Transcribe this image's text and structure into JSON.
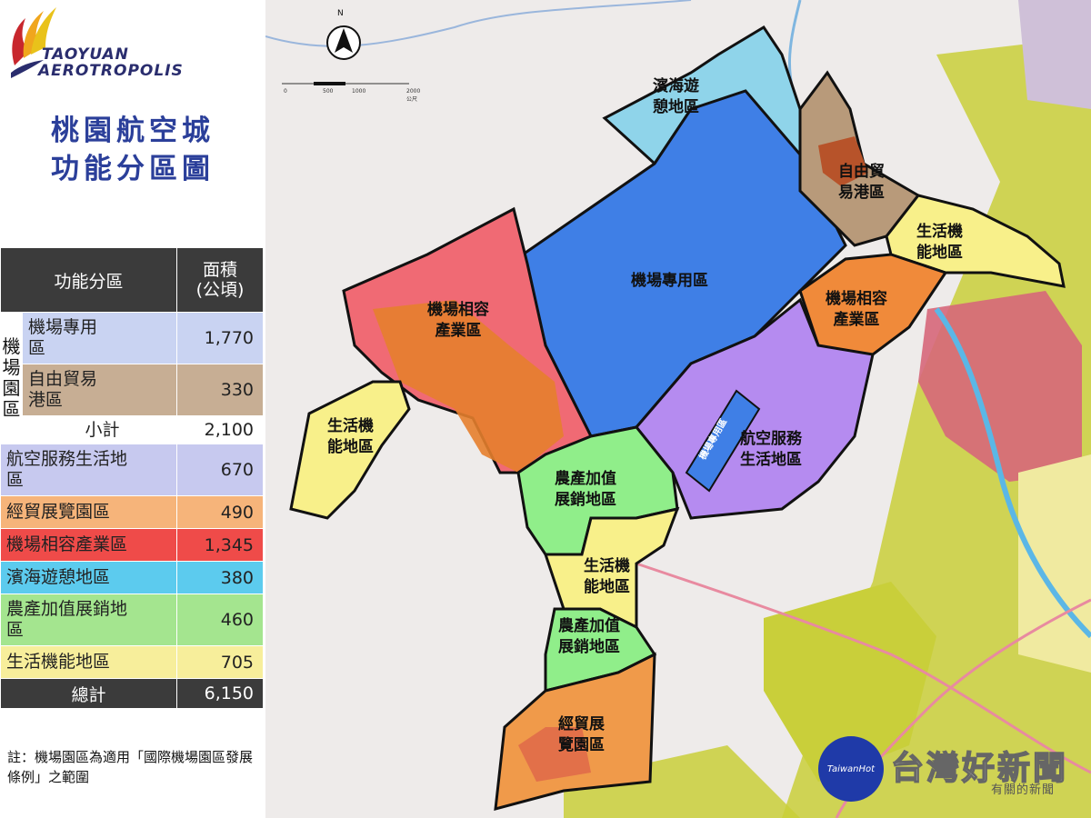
{
  "logo": {
    "line1": "TAOYUAN",
    "line2": "AEROTROPOLIS"
  },
  "title": {
    "line1": "桃園航空城",
    "line2": "功能分區圖"
  },
  "table": {
    "header_zone": "功能分區",
    "header_area": "面積\n(公頃)",
    "group_label": "機\n場\n園\n區",
    "rows": [
      {
        "label": "機場專用\n區",
        "value": "1,770",
        "color": "#c9d3f2"
      },
      {
        "label": "自由貿易\n港區",
        "value": "330",
        "color": "#c7ae94"
      },
      {
        "label": "小計",
        "value": "2,100",
        "color": "#ffffff"
      },
      {
        "label": "航空服務生活地\n區",
        "value": "670",
        "color": "#c7c9ef"
      },
      {
        "label": "經貿展覽園區",
        "value": "490",
        "color": "#f6b47a"
      },
      {
        "label": "機場相容產業區",
        "value": "1,345",
        "color": "#ef4b49"
      },
      {
        "label": "濱海遊憩地區",
        "value": "380",
        "color": "#5ccbee"
      },
      {
        "label": "農產加值展銷地\n區",
        "value": "460",
        "color": "#a4e58f"
      },
      {
        "label": "生活機能地區",
        "value": "705",
        "color": "#f7ee9b"
      }
    ],
    "total_label": "總計",
    "total_value": "6,150"
  },
  "note": "註：機場園區為適用「國際機場園區發展條例」之範圍",
  "map_labels": {
    "coastal": "濱海遊\n憩地區",
    "airport": "機場專用區",
    "ftz": "自由貿\n易港區",
    "life_ne": "生活機\n能地區",
    "compat_w": "機場相容\n產業區",
    "compat_e": "機場相容\n產業區",
    "life_w": "生活機\n能地區",
    "aviation": "航空服務\n生活地區",
    "airport_strip": "機場專用區",
    "agri_1": "農產加值\n展銷地區",
    "life_s": "生活機\n能地區",
    "agri_2": "農產加值\n展銷地區",
    "expo": "經貿展\n覽園區"
  },
  "compass": "N",
  "scale": {
    "ticks": [
      "0",
      "500",
      "1000",
      "2000公尺"
    ]
  },
  "watermark": {
    "title": "台灣好新聞",
    "subtitle": "有關的新聞",
    "badge": "TaiwanHot"
  }
}
